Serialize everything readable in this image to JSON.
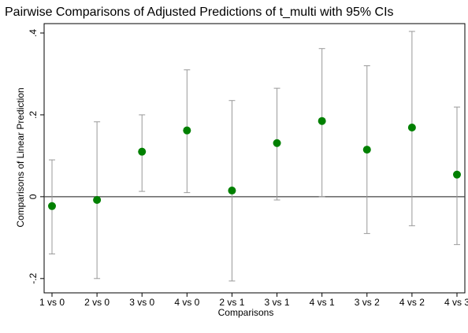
{
  "chart_data": {
    "type": "errorbar",
    "title": "Pairwise Comparisons of Adjusted Predictions of t_multi with 95% CIs",
    "x_label": "Comparisons",
    "y_label": "Comparisons of Linear Prediction",
    "categories": [
      "1 vs 0",
      "2 vs 0",
      "3 vs 0",
      "4 vs 0",
      "2 vs 1",
      "3 vs 1",
      "4 vs 1",
      "3 vs 2",
      "4 vs 2",
      "4 vs 3"
    ],
    "series": [
      {
        "color": "#008000",
        "values": [
          -0.023,
          -0.008,
          0.11,
          0.162,
          0.015,
          0.131,
          0.185,
          0.115,
          0.169,
          0.054
        ],
        "lower": [
          -0.14,
          -0.2,
          0.013,
          0.01,
          -0.206,
          -0.008,
          0,
          -0.09,
          -0.071,
          -0.117
        ],
        "upper": [
          0.09,
          0.183,
          0.2,
          0.31,
          0.235,
          0.265,
          0.362,
          0.32,
          0.404,
          0.219
        ]
      }
    ],
    "ylim": [
      -0.235,
      0.423
    ],
    "yticks": [
      {
        "value": -0.2,
        "label": "-.2"
      },
      0,
      {
        "value": 0.2,
        "label": ".2"
      },
      {
        "value": 0.4,
        "label": ".4"
      }
    ],
    "yline": 0,
    "ci_color": "#999999"
  }
}
